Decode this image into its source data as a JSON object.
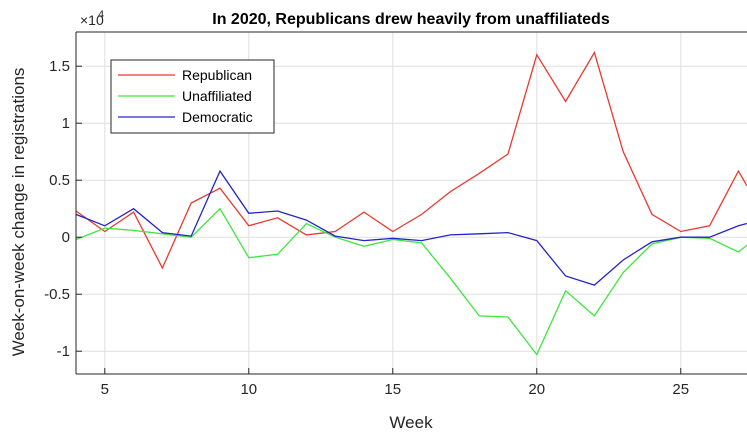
{
  "chart_data": {
    "type": "line",
    "title": "In 2020, Republicans drew heavily from unaffiliateds",
    "xlabel": "Week",
    "ylabel": "Week-on-week change in registrations",
    "y_multiplier": "×10",
    "y_multiplier_exponent": "4",
    "xlim": [
      4,
      27.3
    ],
    "ylim": [
      -1.2,
      1.8
    ],
    "x_ticks": [
      5,
      10,
      15,
      20,
      25
    ],
    "x_tick_labels": [
      "5",
      "10",
      "15",
      "20",
      "25"
    ],
    "y_ticks": [
      -1,
      -0.5,
      0,
      0.5,
      1,
      1.5
    ],
    "y_tick_labels": [
      "-1",
      "-0.5",
      "0",
      "0.5",
      "1",
      "1.5"
    ],
    "grid": true,
    "legend_position": "top-left",
    "x": [
      4,
      5,
      6,
      7,
      8,
      9,
      10,
      11,
      12,
      13,
      14,
      15,
      16,
      17,
      18,
      19,
      20,
      21,
      22,
      23,
      24,
      25,
      26,
      27,
      27.3
    ],
    "series": [
      {
        "name": "Republican",
        "color": "#e8392f",
        "values": [
          0.23,
          0.05,
          0.22,
          -0.27,
          0.3,
          0.43,
          0.1,
          0.17,
          0.02,
          0.05,
          0.22,
          0.05,
          0.2,
          0.4,
          0.56,
          0.73,
          1.6,
          1.19,
          1.62,
          0.75,
          0.2,
          0.05,
          0.1,
          0.58,
          0.45
        ]
      },
      {
        "name": "Unaffiliated",
        "color": "#3fe63f",
        "values": [
          -0.02,
          0.08,
          0.06,
          0.03,
          0.0,
          0.25,
          -0.18,
          -0.15,
          0.12,
          0.0,
          -0.08,
          -0.02,
          -0.05,
          -0.36,
          -0.69,
          -0.7,
          -1.03,
          -0.47,
          -0.69,
          -0.31,
          -0.06,
          0.0,
          -0.01,
          -0.13,
          -0.07
        ]
      },
      {
        "name": "Democratic",
        "color": "#2424c8",
        "values": [
          0.2,
          0.1,
          0.25,
          0.04,
          0.01,
          0.58,
          0.21,
          0.23,
          0.15,
          0.01,
          -0.03,
          -0.01,
          -0.03,
          0.02,
          0.03,
          0.04,
          -0.03,
          -0.34,
          -0.42,
          -0.2,
          -0.04,
          0.0,
          0.0,
          0.1,
          0.12
        ]
      }
    ]
  }
}
